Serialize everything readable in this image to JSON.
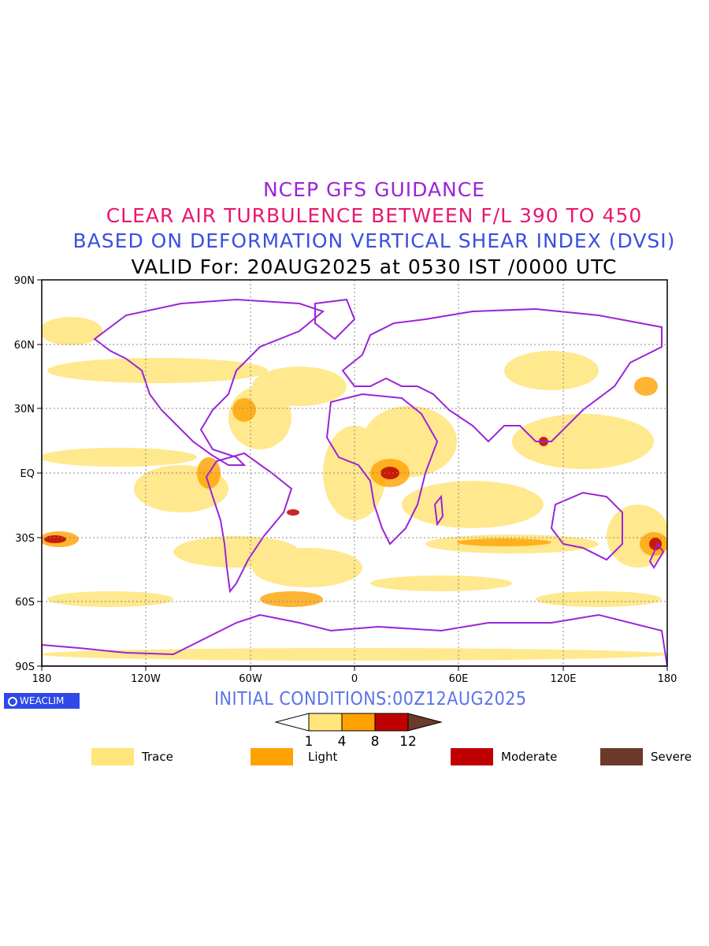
{
  "title_lines": {
    "line1": "NCEP GFS GUIDANCE",
    "line2": "CLEAR AIR TURBULENCE BETWEEN F/L 390 TO 450",
    "line3": "BASED ON DEFORMATION VERTICAL SHEAR INDEX (DVSI)",
    "line4": "VALID For: 20AUG2025 at 0530 IST /0000 UTC"
  },
  "colors": {
    "title1": "#9b24d8",
    "title2": "#e8176f",
    "title3": "#3a4fe0",
    "coastline": "#9b24d8",
    "trace": "#ffe57a",
    "light": "#ffa100",
    "moderate": "#c00000",
    "severe": "#6b3a2a"
  },
  "map": {
    "lat_labels": [
      "90N",
      "60N",
      "30N",
      "EQ",
      "30S",
      "60S",
      "90S"
    ],
    "lon_labels": [
      "180",
      "120W",
      "60W",
      "0",
      "60E",
      "120E",
      "180"
    ],
    "grid": "dotted"
  },
  "colorbar": {
    "ticks": [
      "1",
      "4",
      "8",
      "12"
    ]
  },
  "legend": [
    {
      "label": "Trace",
      "color": "#ffe57a"
    },
    {
      "label": "Light",
      "color": "#ffa100"
    },
    {
      "label": "Moderate",
      "color": "#c00000"
    },
    {
      "label": "Severe",
      "color": "#6b3a2a"
    }
  ],
  "logo": {
    "text": "WEACLIM"
  },
  "initial_conditions": "INITIAL CONDITIONS:00Z12AUG2025"
}
